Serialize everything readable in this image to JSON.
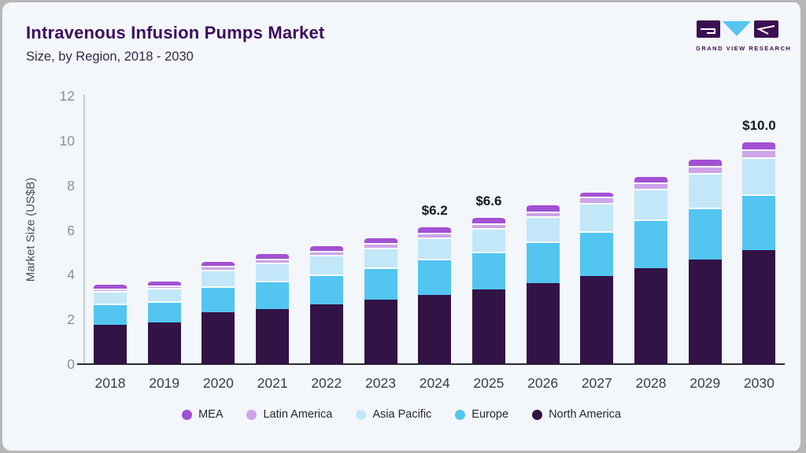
{
  "header": {
    "title": "Intravenous Infusion Pumps Market",
    "subtitle": "Size, by Region, 2018 - 2030",
    "logo_text": "GRAND VIEW RESEARCH"
  },
  "chart_data": {
    "type": "bar",
    "stacked": true,
    "title": "Intravenous Infusion Pumps Market Size, by Region, 2018 - 2030",
    "xlabel": "",
    "ylabel": "Market Size (US$B)",
    "ylim": [
      0,
      12
    ],
    "yticks": [
      0,
      2,
      4,
      6,
      8,
      10,
      12
    ],
    "grid": false,
    "legend_position": "bottom",
    "categories": [
      "2018",
      "2019",
      "2020",
      "2021",
      "2022",
      "2023",
      "2024",
      "2025",
      "2026",
      "2027",
      "2028",
      "2029",
      "2030"
    ],
    "series": [
      {
        "name": "North America",
        "color": "#321345",
        "values": [
          1.75,
          1.87,
          2.31,
          2.46,
          2.66,
          2.88,
          3.1,
          3.35,
          3.64,
          3.93,
          4.28,
          4.67,
          5.12
        ]
      },
      {
        "name": "Europe",
        "color": "#53c5f1",
        "values": [
          0.95,
          0.93,
          1.18,
          1.26,
          1.35,
          1.46,
          1.62,
          1.68,
          1.85,
          2.02,
          2.2,
          2.34,
          2.48
        ]
      },
      {
        "name": "Asia Pacific",
        "color": "#c2e7f8",
        "values": [
          0.57,
          0.6,
          0.73,
          0.82,
          0.88,
          0.88,
          0.96,
          1.05,
          1.14,
          1.27,
          1.38,
          1.53,
          1.66
        ]
      },
      {
        "name": "Latin America",
        "color": "#cda4e8",
        "values": [
          0.12,
          0.13,
          0.17,
          0.18,
          0.18,
          0.2,
          0.21,
          0.21,
          0.2,
          0.26,
          0.26,
          0.32,
          0.33
        ]
      },
      {
        "name": "MEA",
        "color": "#a251d3",
        "values": [
          0.22,
          0.23,
          0.24,
          0.27,
          0.27,
          0.29,
          0.31,
          0.31,
          0.35,
          0.27,
          0.33,
          0.35,
          0.41
        ]
      }
    ],
    "legend_order": [
      "MEA",
      "Latin America",
      "Asia Pacific",
      "Europe",
      "North America"
    ],
    "annotations": [
      {
        "category": "2024",
        "text": "$6.2"
      },
      {
        "category": "2025",
        "text": "$6.6"
      },
      {
        "category": "2030",
        "text": "$10.0"
      }
    ]
  },
  "colors": {
    "background": "#f3f6fa",
    "frame_border": "#b6b6b6",
    "logo_purple": "#3b1053",
    "logo_blue": "#56c6f1"
  }
}
